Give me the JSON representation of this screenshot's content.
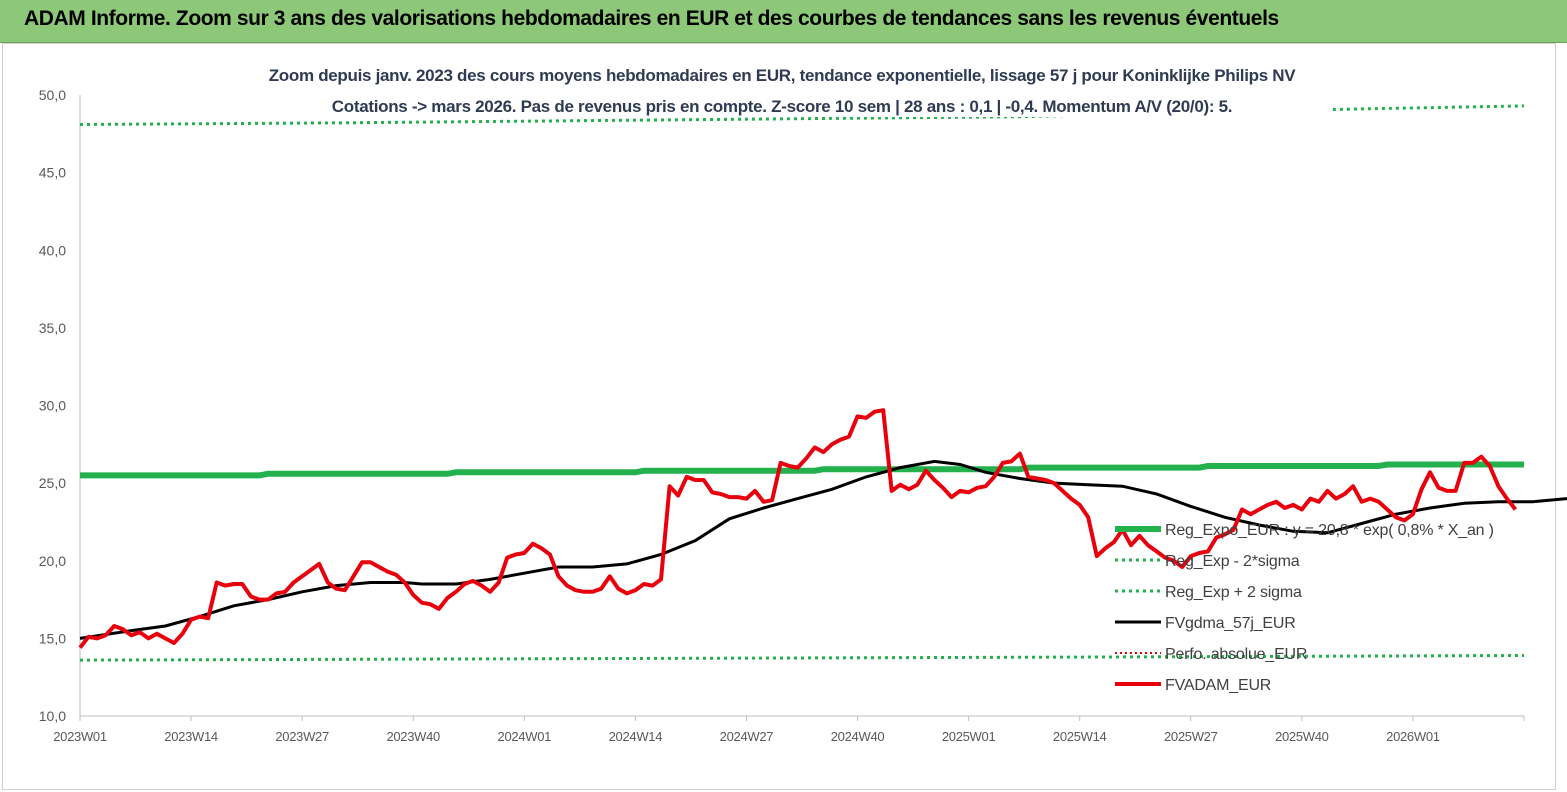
{
  "header": {
    "title": "ADAM Informe. Zoom sur 3 ans des valorisations hebdomadaires en EUR et des courbes de tendances sans les revenus éventuels"
  },
  "chart_data": {
    "type": "line",
    "title": "Zoom depuis janv. 2023 des cours moyens hebdomadaires en EUR, tendance exponentielle, lissage 57 j pour Koninklijke Philips NV",
    "subtitle": "Cotations -> mars 2026. Pas de revenus pris en compte. Z-score 10 sem | 28 ans : 0,1 | -0,4. Momentum A/V (20/0): 5.",
    "xlabel": "",
    "ylabel": "",
    "ylim": [
      10,
      50
    ],
    "yticks": [
      "10,0",
      "15,0",
      "20,0",
      "25,0",
      "30,0",
      "35,0",
      "40,0",
      "45,0",
      "50,0"
    ],
    "xticks": [
      "2023W01",
      "2023W14",
      "2023W27",
      "2023W40",
      "2024W01",
      "2024W14",
      "2024W27",
      "2024W40",
      "2025W01",
      "2025W14",
      "2025W27",
      "2025W40",
      "2026W01"
    ],
    "x_range_weeks": [
      0,
      169
    ],
    "grid": false,
    "legend_position": "right",
    "colors": {
      "reg": "#22b14c",
      "band": "#22b14c",
      "smooth": "#000000",
      "perfo": "#e00000",
      "price": "#e8000d"
    },
    "series": [
      {
        "name": "Reg_Expo_EUR : y = 20,8 * exp( 0,8% *  X_an )",
        "style": "reg",
        "points": [
          [
            0,
            25.5
          ],
          [
            21,
            25.5
          ],
          [
            22,
            25.6
          ],
          [
            43,
            25.6
          ],
          [
            44,
            25.7
          ],
          [
            65,
            25.7
          ],
          [
            66,
            25.8
          ],
          [
            86,
            25.8
          ],
          [
            87,
            25.9
          ],
          [
            110,
            25.9
          ],
          [
            111,
            26.0
          ],
          [
            131,
            26.0
          ],
          [
            132,
            26.1
          ],
          [
            152,
            26.1
          ],
          [
            153,
            26.2
          ],
          [
            169,
            26.2
          ]
        ]
      },
      {
        "name": "Reg_Exp - 2*sigma",
        "style": "band",
        "points": [
          [
            0,
            13.6
          ],
          [
            60,
            13.7
          ],
          [
            120,
            13.8
          ],
          [
            169,
            13.9
          ]
        ]
      },
      {
        "name": "Reg_Exp + 2 sigma",
        "style": "band",
        "points": [
          [
            0,
            48.1
          ],
          [
            30,
            48.2
          ],
          [
            70,
            48.4
          ],
          [
            110,
            48.6
          ],
          [
            140,
            49.0
          ],
          [
            169,
            49.3
          ]
        ]
      },
      {
        "name": "FVgdma_57j_EUR",
        "style": "smooth",
        "points": [
          [
            0,
            15.0
          ],
          [
            6,
            15.5
          ],
          [
            10,
            15.8
          ],
          [
            14,
            16.4
          ],
          [
            18,
            17.1
          ],
          [
            22,
            17.5
          ],
          [
            26,
            18.0
          ],
          [
            30,
            18.4
          ],
          [
            34,
            18.6
          ],
          [
            38,
            18.6
          ],
          [
            40,
            18.5
          ],
          [
            44,
            18.5
          ],
          [
            48,
            18.8
          ],
          [
            52,
            19.2
          ],
          [
            56,
            19.6
          ],
          [
            60,
            19.6
          ],
          [
            64,
            19.8
          ],
          [
            68,
            20.4
          ],
          [
            72,
            21.3
          ],
          [
            76,
            22.7
          ],
          [
            80,
            23.4
          ],
          [
            84,
            24.0
          ],
          [
            88,
            24.6
          ],
          [
            92,
            25.4
          ],
          [
            96,
            26.0
          ],
          [
            100,
            26.4
          ],
          [
            103,
            26.2
          ],
          [
            106,
            25.7
          ],
          [
            110,
            25.3
          ],
          [
            114,
            25.0
          ],
          [
            118,
            24.9
          ],
          [
            122,
            24.8
          ],
          [
            126,
            24.3
          ],
          [
            130,
            23.5
          ],
          [
            134,
            22.8
          ],
          [
            138,
            22.3
          ],
          [
            142,
            21.9
          ],
          [
            146,
            21.8
          ],
          [
            150,
            22.4
          ],
          [
            154,
            23.0
          ],
          [
            158,
            23.4
          ],
          [
            162,
            23.7
          ],
          [
            166,
            23.8
          ],
          [
            170,
            23.8
          ],
          [
            174,
            24.0
          ],
          [
            178,
            24.3
          ],
          [
            182,
            24.5
          ],
          [
            186,
            24.5
          ],
          [
            188,
            24.2
          ],
          [
            190,
            23.9
          ]
        ]
      },
      {
        "name": "Perfo. absolue_EUR",
        "style": "perfo",
        "points": []
      },
      {
        "name": "FVADAM_EUR",
        "style": "price",
        "points": [
          [
            0,
            14.4
          ],
          [
            1,
            15.1
          ],
          [
            2,
            15.0
          ],
          [
            3,
            15.2
          ],
          [
            4,
            15.8
          ],
          [
            5,
            15.6
          ],
          [
            6,
            15.2
          ],
          [
            7,
            15.4
          ],
          [
            8,
            15.0
          ],
          [
            9,
            15.3
          ],
          [
            10,
            15.0
          ],
          [
            11,
            14.7
          ],
          [
            12,
            15.3
          ],
          [
            13,
            16.2
          ],
          [
            14,
            16.4
          ],
          [
            15,
            16.3
          ],
          [
            16,
            18.6
          ],
          [
            17,
            18.4
          ],
          [
            18,
            18.5
          ],
          [
            19,
            18.5
          ],
          [
            20,
            17.7
          ],
          [
            21,
            17.5
          ],
          [
            22,
            17.5
          ],
          [
            23,
            17.9
          ],
          [
            24,
            18.0
          ],
          [
            25,
            18.6
          ],
          [
            26,
            19.0
          ],
          [
            27,
            19.4
          ],
          [
            28,
            19.8
          ],
          [
            29,
            18.6
          ],
          [
            30,
            18.2
          ],
          [
            31,
            18.1
          ],
          [
            32,
            19.0
          ],
          [
            33,
            19.9
          ],
          [
            34,
            19.9
          ],
          [
            35,
            19.6
          ],
          [
            36,
            19.3
          ],
          [
            37,
            19.1
          ],
          [
            38,
            18.6
          ],
          [
            39,
            17.8
          ],
          [
            40,
            17.3
          ],
          [
            41,
            17.2
          ],
          [
            42,
            16.9
          ],
          [
            43,
            17.6
          ],
          [
            44,
            18.0
          ],
          [
            45,
            18.5
          ],
          [
            46,
            18.7
          ],
          [
            47,
            18.4
          ],
          [
            48,
            18.0
          ],
          [
            49,
            18.6
          ],
          [
            50,
            20.2
          ],
          [
            51,
            20.4
          ],
          [
            52,
            20.5
          ],
          [
            53,
            21.1
          ],
          [
            54,
            20.8
          ],
          [
            55,
            20.4
          ],
          [
            56,
            19.0
          ],
          [
            57,
            18.4
          ],
          [
            58,
            18.1
          ],
          [
            59,
            18.0
          ],
          [
            60,
            18.0
          ],
          [
            61,
            18.2
          ],
          [
            62,
            19.0
          ],
          [
            63,
            18.2
          ],
          [
            64,
            17.9
          ],
          [
            65,
            18.1
          ],
          [
            66,
            18.5
          ],
          [
            67,
            18.4
          ],
          [
            68,
            18.8
          ],
          [
            69,
            24.8
          ],
          [
            70,
            24.2
          ],
          [
            71,
            25.4
          ],
          [
            72,
            25.2
          ],
          [
            73,
            25.2
          ],
          [
            74,
            24.4
          ],
          [
            75,
            24.3
          ],
          [
            76,
            24.1
          ],
          [
            77,
            24.1
          ],
          [
            78,
            24.0
          ],
          [
            79,
            24.5
          ],
          [
            80,
            23.8
          ],
          [
            81,
            23.9
          ],
          [
            82,
            26.3
          ],
          [
            83,
            26.1
          ],
          [
            84,
            26.0
          ],
          [
            85,
            26.6
          ],
          [
            86,
            27.3
          ],
          [
            87,
            27.0
          ],
          [
            88,
            27.5
          ],
          [
            89,
            27.8
          ],
          [
            90,
            28.0
          ],
          [
            91,
            29.3
          ],
          [
            92,
            29.2
          ],
          [
            93,
            29.6
          ],
          [
            94,
            29.7
          ],
          [
            95,
            24.5
          ],
          [
            96,
            24.9
          ],
          [
            97,
            24.6
          ],
          [
            98,
            24.9
          ],
          [
            99,
            25.8
          ],
          [
            100,
            25.2
          ],
          [
            101,
            24.7
          ],
          [
            102,
            24.1
          ],
          [
            103,
            24.5
          ],
          [
            104,
            24.4
          ],
          [
            105,
            24.7
          ],
          [
            106,
            24.8
          ],
          [
            107,
            25.4
          ],
          [
            108,
            26.3
          ],
          [
            109,
            26.4
          ],
          [
            110,
            26.9
          ],
          [
            111,
            25.4
          ],
          [
            112,
            25.3
          ],
          [
            113,
            25.2
          ],
          [
            114,
            25.0
          ],
          [
            115,
            24.5
          ],
          [
            116,
            24.0
          ],
          [
            117,
            23.6
          ],
          [
            118,
            22.8
          ],
          [
            119,
            20.3
          ],
          [
            120,
            20.8
          ],
          [
            121,
            21.2
          ],
          [
            122,
            22.0
          ],
          [
            123,
            21.0
          ],
          [
            124,
            21.6
          ],
          [
            125,
            21.0
          ],
          [
            126,
            20.6
          ],
          [
            127,
            20.2
          ],
          [
            128,
            20.0
          ],
          [
            129,
            19.6
          ],
          [
            130,
            20.3
          ],
          [
            131,
            20.5
          ],
          [
            132,
            20.6
          ],
          [
            133,
            21.5
          ],
          [
            134,
            21.7
          ],
          [
            135,
            22.0
          ],
          [
            136,
            23.3
          ],
          [
            137,
            23.0
          ],
          [
            138,
            23.3
          ],
          [
            139,
            23.6
          ],
          [
            140,
            23.8
          ],
          [
            141,
            23.4
          ],
          [
            142,
            23.6
          ],
          [
            143,
            23.3
          ],
          [
            144,
            24.0
          ],
          [
            145,
            23.8
          ],
          [
            146,
            24.5
          ],
          [
            147,
            24.0
          ],
          [
            148,
            24.3
          ],
          [
            149,
            24.8
          ],
          [
            150,
            23.8
          ],
          [
            151,
            24.0
          ],
          [
            152,
            23.8
          ],
          [
            153,
            23.3
          ],
          [
            154,
            22.8
          ],
          [
            155,
            22.6
          ],
          [
            156,
            23.0
          ],
          [
            157,
            24.6
          ],
          [
            158,
            25.7
          ],
          [
            159,
            24.7
          ],
          [
            160,
            24.5
          ],
          [
            161,
            24.5
          ],
          [
            162,
            26.3
          ],
          [
            163,
            26.3
          ],
          [
            164,
            26.7
          ],
          [
            165,
            26.1
          ],
          [
            166,
            24.8
          ],
          [
            167,
            24.0
          ],
          [
            168,
            23.3
          ]
        ]
      }
    ]
  }
}
